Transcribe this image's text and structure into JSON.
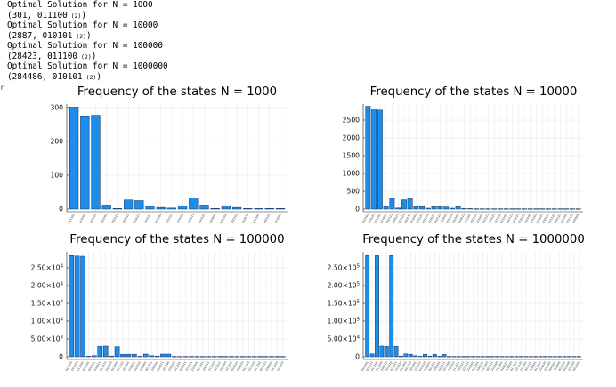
{
  "output": {
    "lines": [
      {
        "text": "Optimal Solution for N = 1000",
        "sub": ""
      },
      {
        "text": "(301, 011100",
        "sub": "(2)",
        "close": ")"
      },
      {
        "text": "Optimal Solution for N = 10000",
        "sub": ""
      },
      {
        "text": "(2887, 010101",
        "sub": "(2)",
        "close": ")"
      },
      {
        "text": "Optimal Solution for N = 100000",
        "sub": ""
      },
      {
        "text": "(28423, 011100",
        "sub": "(2)",
        "close": ")"
      },
      {
        "text": "Optimal Solution for N = 1000000",
        "sub": ""
      },
      {
        "text": "(284486, 010101",
        "sub": "(2)",
        "close": ")"
      }
    ],
    "marker": "r"
  },
  "chart_data": [
    {
      "type": "bar",
      "title": "Frequency of the states N = 1000",
      "ylim": [
        0,
        310
      ],
      "yticks": [
        {
          "v": 0,
          "label": "0"
        },
        {
          "v": 100,
          "label": "100"
        },
        {
          "v": 200,
          "label": "200"
        },
        {
          "v": 300,
          "label": "300"
        }
      ],
      "categories": [
        "011100",
        "111000",
        "101010",
        "010101",
        "000111",
        "100011",
        "011011",
        "110110",
        "011001",
        "001110",
        "101001",
        "110011",
        "010110",
        "110001",
        "001101",
        "100101",
        "010011",
        "101100",
        "100110",
        "111001"
      ],
      "values": [
        301,
        275,
        277,
        12,
        2,
        27,
        25,
        8,
        5,
        3,
        10,
        33,
        12,
        2,
        10,
        5,
        2,
        2,
        2,
        2
      ],
      "grid": true
    },
    {
      "type": "bar",
      "title": "Frequency of the states N = 10000",
      "ylim": [
        0,
        2950
      ],
      "yticks": [
        {
          "v": 0,
          "label": "0"
        },
        {
          "v": 500,
          "label": "500"
        },
        {
          "v": 1000,
          "label": "1000"
        },
        {
          "v": 1500,
          "label": "1500"
        },
        {
          "v": 2000,
          "label": "2000"
        },
        {
          "v": 2500,
          "label": "2500"
        }
      ],
      "categories": [
        "010101",
        "101010",
        "011100",
        "111000",
        "000111",
        "100011",
        "011011",
        "110110",
        "011001",
        "001110",
        "101001",
        "110011",
        "010110",
        "110001",
        "001101",
        "100101",
        "010011",
        "101100",
        "100110",
        "111001",
        "010111",
        "101011",
        "110101",
        "011101",
        "100111",
        "111010",
        "001011",
        "110100",
        "101101",
        "010010",
        "100010",
        "011110",
        "101110",
        "111100",
        "001111",
        "100001"
      ],
      "values": [
        2887,
        2810,
        2780,
        70,
        300,
        30,
        260,
        300,
        70,
        70,
        25,
        70,
        70,
        60,
        25,
        70,
        20,
        15,
        10,
        10,
        10,
        10,
        10,
        10,
        10,
        10,
        10,
        10,
        10,
        10,
        10,
        10,
        10,
        10,
        10,
        10
      ],
      "grid": true
    },
    {
      "type": "bar",
      "title": "Frequency of the states N = 100000",
      "ylim": [
        0,
        29500
      ],
      "yticks": [
        {
          "v": 0,
          "label": "0",
          "exp": ""
        },
        {
          "v": 5000,
          "label": "5.00×10",
          "exp": "3"
        },
        {
          "v": 10000,
          "label": "1.00×10",
          "exp": "4"
        },
        {
          "v": 15000,
          "label": "1.50×10",
          "exp": "4"
        },
        {
          "v": 20000,
          "label": "2.00×10",
          "exp": "4"
        },
        {
          "v": 25000,
          "label": "2.50×10",
          "exp": "4"
        }
      ],
      "categories": [
        "011100",
        "101010",
        "111000",
        "010101",
        "000111",
        "100011",
        "011011",
        "110110",
        "011001",
        "001110",
        "101001",
        "110011",
        "010110",
        "110001",
        "001101",
        "100101",
        "010011",
        "101100",
        "100110",
        "111001",
        "010111",
        "101011",
        "110101",
        "011101",
        "100111",
        "111010",
        "001011",
        "110100",
        "101101",
        "010010",
        "100010",
        "011110",
        "101110",
        "111100",
        "001111",
        "100001",
        "011010",
        "110010"
      ],
      "values": [
        28423,
        28300,
        28250,
        150,
        300,
        2950,
        3000,
        200,
        2850,
        700,
        700,
        700,
        150,
        750,
        300,
        200,
        750,
        750,
        100,
        100,
        100,
        100,
        100,
        100,
        100,
        100,
        100,
        100,
        100,
        100,
        100,
        100,
        100,
        100,
        100,
        100,
        100,
        100
      ],
      "grid": true
    },
    {
      "type": "bar",
      "title": "Frequency of the states N = 1000000",
      "ylim": [
        0,
        295000
      ],
      "yticks": [
        {
          "v": 0,
          "label": "0",
          "exp": ""
        },
        {
          "v": 50000,
          "label": "5.00×10",
          "exp": "4"
        },
        {
          "v": 100000,
          "label": "1.00×10",
          "exp": "5"
        },
        {
          "v": 150000,
          "label": "1.50×10",
          "exp": "5"
        },
        {
          "v": 200000,
          "label": "2.00×10",
          "exp": "5"
        },
        {
          "v": 250000,
          "label": "2.50×10",
          "exp": "5"
        }
      ],
      "categories": [
        "010101",
        "000111",
        "011100",
        "111000",
        "100011",
        "101010",
        "011011",
        "110110",
        "011001",
        "001110",
        "101001",
        "110011",
        "010110",
        "110001",
        "001101",
        "100101",
        "010011",
        "101100",
        "100110",
        "111001",
        "010111",
        "101011",
        "110101",
        "011101",
        "100111",
        "111010",
        "001011",
        "110100",
        "101101",
        "010010",
        "100010",
        "011110",
        "101110",
        "111100",
        "001111",
        "100001",
        "011010",
        "110010",
        "101000",
        "000101",
        "110000",
        "001010",
        "010100",
        "100100",
        "001001"
      ],
      "values": [
        284486,
        8000,
        284000,
        30000,
        29000,
        284200,
        29500,
        2000,
        8000,
        7000,
        3000,
        1500,
        7000,
        2000,
        7000,
        1500,
        6500,
        1000,
        1000,
        1000,
        1000,
        1000,
        1000,
        1000,
        1000,
        1000,
        1000,
        1000,
        1000,
        1000,
        1000,
        1000,
        1000,
        1000,
        1000,
        1000,
        1000,
        1000,
        1000,
        1000,
        1000,
        1000,
        1000,
        1000,
        1000
      ],
      "grid": true
    }
  ]
}
